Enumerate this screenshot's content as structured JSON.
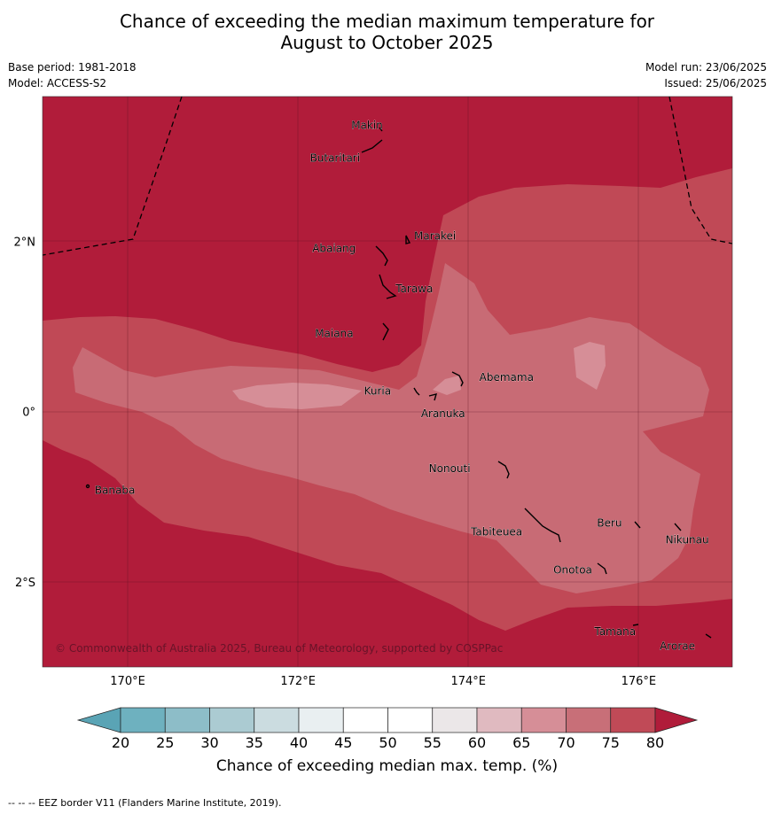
{
  "title_line1": "Chance of exceeding the median maximum temperature for",
  "title_line2": "August to October 2025",
  "base_period": "Base period: 1981-2018",
  "model": "Model: ACCESS-S2",
  "model_run": "Model run: 23/06/2025",
  "issued": "Issued: 25/06/2025",
  "copyright": "© Commonwealth of Australia 2025, Bureau of Meteorology, supported by COSPPac",
  "lon_labels": [
    "170°E",
    "172°E",
    "174°E",
    "176°E"
  ],
  "lon_values": [
    170,
    172,
    174,
    176
  ],
  "lat_labels": [
    "2°N",
    "0°",
    "2°S"
  ],
  "lat_values": [
    2,
    0,
    -2
  ],
  "extent": {
    "lon_min": 169.0,
    "lon_max": 177.1,
    "lat_min": -3.0,
    "lat_max": 3.7
  },
  "islands": [
    {
      "name": "Makin",
      "lon": 173.0,
      "lat": 3.35
    },
    {
      "name": "Butaritari",
      "lon": 172.9,
      "lat": 3.1
    },
    {
      "name": "Marakei",
      "lon": 173.3,
      "lat": 2.0
    },
    {
      "name": "Abaiang",
      "lon": 173.0,
      "lat": 1.8
    },
    {
      "name": "Tarawa",
      "lon": 173.0,
      "lat": 1.4
    },
    {
      "name": "Maiana",
      "lon": 173.0,
      "lat": 0.95
    },
    {
      "name": "Abemama",
      "lon": 173.9,
      "lat": 0.4
    },
    {
      "name": "Kuria",
      "lon": 173.4,
      "lat": 0.22
    },
    {
      "name": "Aranuka",
      "lon": 173.6,
      "lat": 0.15
    },
    {
      "name": "Banaba",
      "lon": 169.55,
      "lat": -0.87
    },
    {
      "name": "Nonouti",
      "lon": 174.4,
      "lat": -0.65
    },
    {
      "name": "Tabiteuea",
      "lon": 174.8,
      "lat": -1.3
    },
    {
      "name": "Beru",
      "lon": 176.0,
      "lat": -1.35
    },
    {
      "name": "Nikunau",
      "lon": 176.45,
      "lat": -1.35
    },
    {
      "name": "Onotoa",
      "lon": 175.55,
      "lat": -1.8
    },
    {
      "name": "Tamana",
      "lon": 175.98,
      "lat": -2.5
    },
    {
      "name": "Arorae",
      "lon": 176.82,
      "lat": -2.65
    }
  ],
  "colorbar": {
    "title": "Chance of exceeding median max. temp. (%)",
    "ticks": [
      "20",
      "25",
      "30",
      "35",
      "40",
      "45",
      "50",
      "55",
      "60",
      "65",
      "70",
      "75",
      "80"
    ],
    "colors": [
      "#5aa4b5",
      "#6eb1bf",
      "#8dbdc8",
      "#abcbd2",
      "#cbdce0",
      "#e9eff1",
      "#ffffff",
      "#ffffff",
      "#ebe7e8",
      "#e0bac0",
      "#d68e97",
      "#c86f78",
      "#c04a57",
      "#b01c3a"
    ]
  },
  "zone_colors": {
    "c80": "#b11c3a",
    "c75": "#c04956",
    "c70": "#c86b75",
    "c65": "#d68e97"
  },
  "footnote": "-- -- -- EEZ border V11 (Flanders Marine Institute, 2019)."
}
